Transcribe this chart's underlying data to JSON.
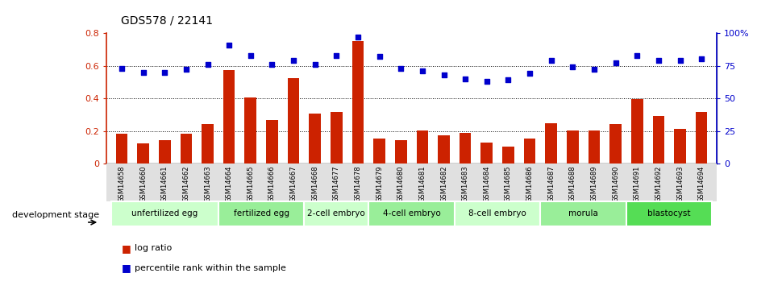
{
  "title": "GDS578 / 22141",
  "gsm_labels": [
    "GSM14658",
    "GSM14660",
    "GSM14661",
    "GSM14662",
    "GSM14663",
    "GSM14664",
    "GSM14665",
    "GSM14666",
    "GSM14667",
    "GSM14668",
    "GSM14677",
    "GSM14678",
    "GSM14679",
    "GSM14680",
    "GSM14681",
    "GSM14682",
    "GSM14683",
    "GSM14684",
    "GSM14685",
    "GSM14686",
    "GSM14687",
    "GSM14688",
    "GSM14689",
    "GSM14690",
    "GSM14691",
    "GSM14692",
    "GSM14693",
    "GSM14694"
  ],
  "log_ratio": [
    0.185,
    0.125,
    0.145,
    0.185,
    0.245,
    0.575,
    0.405,
    0.265,
    0.525,
    0.305,
    0.315,
    0.75,
    0.155,
    0.145,
    0.205,
    0.175,
    0.19,
    0.13,
    0.105,
    0.155,
    0.25,
    0.205,
    0.205,
    0.245,
    0.395,
    0.29,
    0.215,
    0.315
  ],
  "percentile_rank": [
    73,
    70,
    70,
    72,
    76,
    91,
    83,
    76,
    79,
    76,
    83,
    97,
    82,
    73,
    71,
    68,
    65,
    63,
    64,
    69,
    79,
    74,
    72,
    77,
    83,
    79,
    79,
    80
  ],
  "stages": [
    {
      "label": "unfertilized egg",
      "start": 0,
      "end": 5,
      "color": "#ccffcc"
    },
    {
      "label": "fertilized egg",
      "start": 5,
      "end": 9,
      "color": "#99ee99"
    },
    {
      "label": "2-cell embryo",
      "start": 9,
      "end": 12,
      "color": "#ccffcc"
    },
    {
      "label": "4-cell embryo",
      "start": 12,
      "end": 16,
      "color": "#99ee99"
    },
    {
      "label": "8-cell embryo",
      "start": 16,
      "end": 20,
      "color": "#ccffcc"
    },
    {
      "label": "morula",
      "start": 20,
      "end": 24,
      "color": "#99ee99"
    },
    {
      "label": "blastocyst",
      "start": 24,
      "end": 28,
      "color": "#55dd55"
    }
  ],
  "bar_color": "#cc2200",
  "scatter_color": "#0000cc",
  "ylim_left": [
    0,
    0.8
  ],
  "ylim_right": [
    0,
    100
  ],
  "yticks_left": [
    0,
    0.2,
    0.4,
    0.6,
    0.8
  ],
  "yticks_right": [
    0,
    25,
    50,
    75,
    100
  ],
  "ytick_labels_right": [
    "0",
    "25",
    "50",
    "75",
    "100%"
  ],
  "background_color": "#ffffff",
  "dev_stage_label": "development stage",
  "legend_bar_label": "log ratio",
  "legend_scatter_label": "percentile rank within the sample"
}
